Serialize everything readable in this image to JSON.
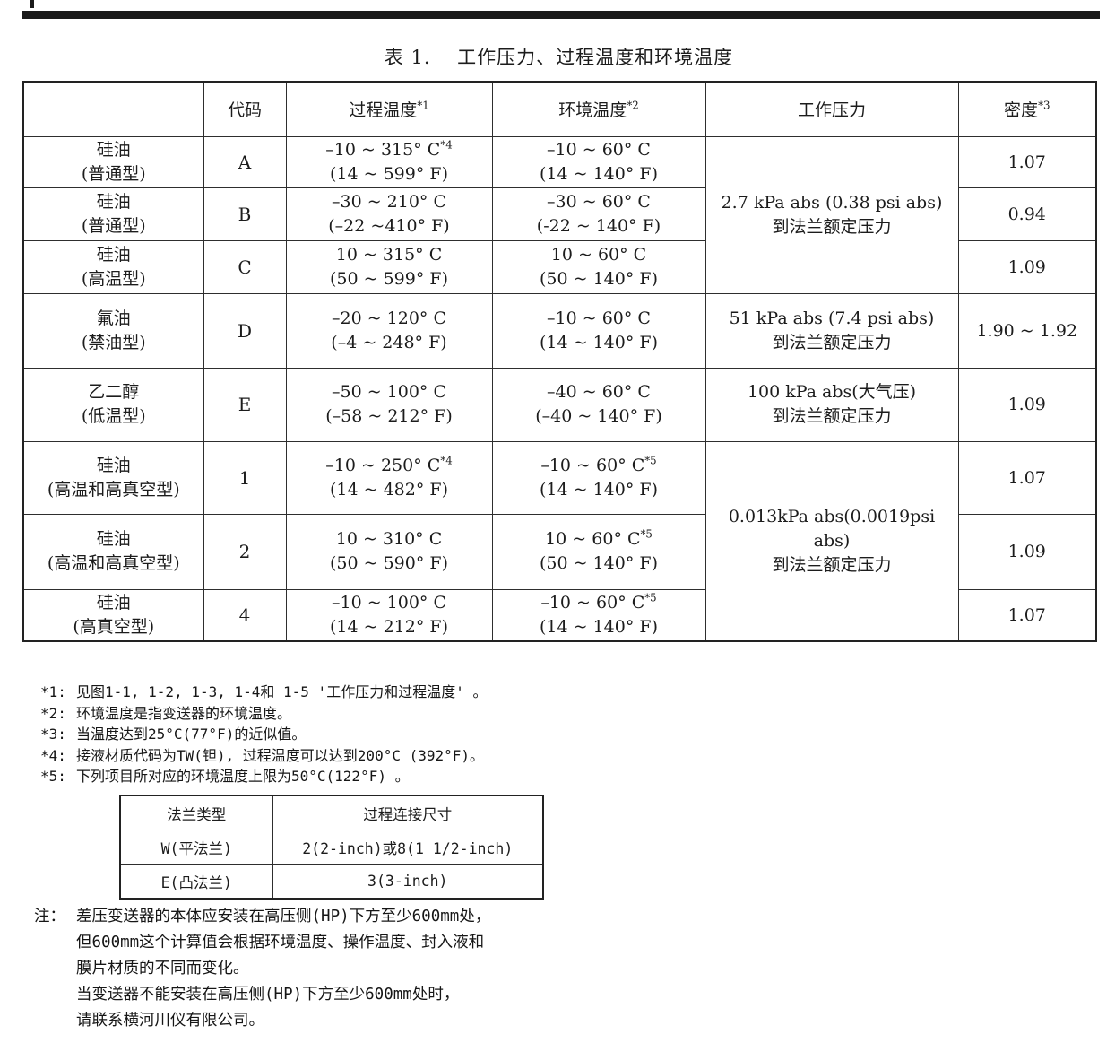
{
  "page": {
    "title": "表 1.　 工作压力、过程温度和环境温度"
  },
  "main_table": {
    "headers": {
      "material": "",
      "code": "代码",
      "process_temp": {
        "label": "过程温度",
        "sup": "*1"
      },
      "ambient_temp": {
        "label": "环境温度",
        "sup": "*2"
      },
      "pressure": "工作压力",
      "density": {
        "label": "密度",
        "sup": "*3"
      }
    },
    "rows": [
      {
        "material": "硅油",
        "type": "(普通型)",
        "code": "A",
        "process_c": "–10 ~ 315° C",
        "process_c_sup": "*4",
        "process_f": "(14 ~ 599° F)",
        "ambient_c": "–10 ~ 60° C",
        "ambient_c_sup": "",
        "ambient_f": "(14 ~ 140° F)",
        "density": "1.07"
      },
      {
        "material": "硅油",
        "type": "(普通型)",
        "code": "B",
        "process_c": "–30 ~ 210° C",
        "process_c_sup": "",
        "process_f": "(–22 ~410° F)",
        "ambient_c": "–30 ~ 60° C",
        "ambient_c_sup": "",
        "ambient_f": "(-22 ~ 140° F)",
        "density": "0.94"
      },
      {
        "material": "硅油",
        "type": "(高温型)",
        "code": "C",
        "process_c": "10 ~ 315° C",
        "process_c_sup": "",
        "process_f": "(50 ~ 599° F)",
        "ambient_c": "10 ~ 60° C",
        "ambient_c_sup": "",
        "ambient_f": "(50 ~ 140° F)",
        "density": "1.09"
      },
      {
        "material": "氟油",
        "type": "(禁油型)",
        "code": "D",
        "process_c": "–20 ~ 120° C",
        "process_c_sup": "",
        "process_f": "(–4 ~ 248° F)",
        "ambient_c": "–10 ~ 60° C",
        "ambient_c_sup": "",
        "ambient_f": "(14 ~ 140° F)",
        "density": "1.90 ~ 1.92"
      },
      {
        "material": "乙二醇",
        "type": "(低温型)",
        "code": "E",
        "process_c": "–50 ~ 100° C",
        "process_c_sup": "",
        "process_f": "(–58 ~ 212° F)",
        "ambient_c": "–40 ~ 60° C",
        "ambient_c_sup": "",
        "ambient_f": "(–40 ~ 140° F)",
        "density": "1.09"
      },
      {
        "material": "硅油",
        "type": "(高温和高真空型)",
        "code": "1",
        "process_c": "–10 ~ 250° C",
        "process_c_sup": "*4",
        "process_f": "(14 ~ 482° F)",
        "ambient_c": "–10 ~ 60° C",
        "ambient_c_sup": "*5",
        "ambient_f": "(14 ~ 140° F)",
        "density": "1.07"
      },
      {
        "material": "硅油",
        "type": "(高温和高真空型)",
        "code": "2",
        "process_c": "10 ~ 310° C",
        "process_c_sup": "",
        "process_f": "(50 ~ 590° F)",
        "ambient_c": "10 ~ 60° C",
        "ambient_c_sup": "*5",
        "ambient_f": "(50 ~ 140° F)",
        "density": "1.09"
      },
      {
        "material": "硅油",
        "type": "(高真空型)",
        "code": "4",
        "process_c": "–10 ~ 100° C",
        "process_c_sup": "",
        "process_f": "(14 ~ 212° F)",
        "ambient_c": "–10 ~ 60° C",
        "ambient_c_sup": "*5",
        "ambient_f": "(14 ~ 140° F)",
        "density": "1.07"
      }
    ],
    "pressure_groups": [
      {
        "start": 0,
        "span": 3,
        "line1": "2.7 kPa abs (0.38 psi abs)",
        "line2": "到法兰额定压力"
      },
      {
        "start": 3,
        "span": 1,
        "line1": "51 kPa abs (7.4 psi abs)",
        "line2": "到法兰额定压力"
      },
      {
        "start": 4,
        "span": 1,
        "line1": "100 kPa abs(大气压)",
        "line2": "到法兰额定压力"
      },
      {
        "start": 5,
        "span": 3,
        "line1": "0.013kPa abs(0.0019psi abs)",
        "line2": "到法兰额定压力"
      }
    ]
  },
  "footnotes": [
    {
      "label": "*1:",
      "text": "见图1-1, 1-2, 1-3, 1-4和 1-5 '工作压力和过程温度' 。"
    },
    {
      "label": "*2:",
      "text": "环境温度是指变送器的环境温度。"
    },
    {
      "label": "*3:",
      "text": "当温度达到25°C(77°F)的近似值。"
    },
    {
      "label": "*4:",
      "text": "接液材质代码为TW(钽), 过程温度可以达到200°C (392°F)。"
    },
    {
      "label": "*5:",
      "text": "下列项目所对应的环境温度上限为50°C(122°F) 。"
    }
  ],
  "flange_table": {
    "headers": [
      "法兰类型",
      "过程连接尺寸"
    ],
    "rows": [
      [
        "W(平法兰)",
        "2(2-inch)或8(1 1/2-inch)"
      ],
      [
        "E(凸法兰)",
        "3(3-inch)"
      ]
    ]
  },
  "note": {
    "label": "注：",
    "lines": [
      "差压变送器的本体应安装在高压侧(HP)下方至少600mm处，",
      "但600mm这个计算值会根据环境温度、操作温度、封入液和",
      "膜片材质的不同而变化。",
      "当变送器不能安装在高压侧(HP)下方至少600mm处时，",
      "请联系横河川仪有限公司。"
    ]
  }
}
